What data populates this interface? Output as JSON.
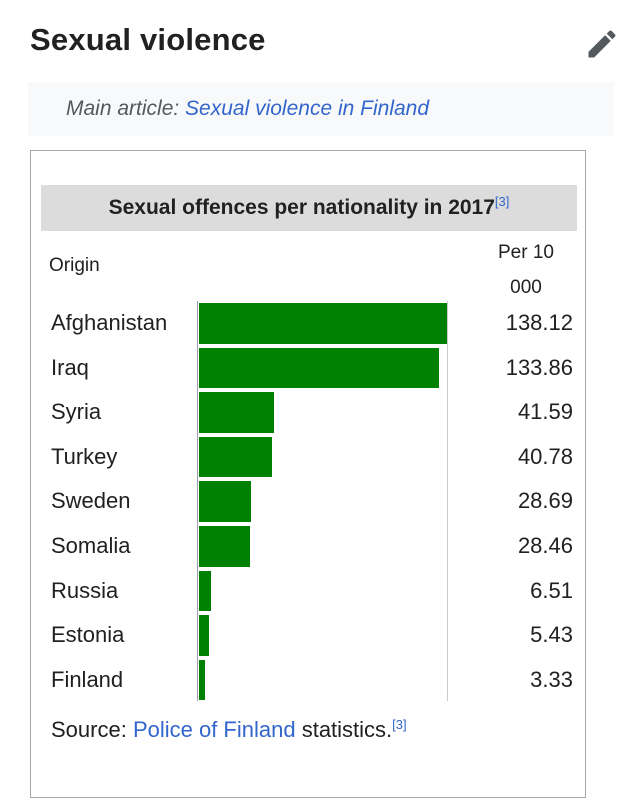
{
  "section": {
    "title": "Sexual violence",
    "edit_icon": "pencil-icon"
  },
  "hatnote": {
    "prefix": "Main article: ",
    "link": "Sexual violence in Finland"
  },
  "infobox": {
    "caption": "Sexual offences per nationality in 2017",
    "caption_ref": "[3]",
    "col_origin": "Origin",
    "col_per_line1": "Per 10",
    "col_per_line2": "000",
    "source_prefix": "Source: ",
    "source_link": "Police of Finland",
    "source_suffix": " statistics.",
    "source_ref": "[3]"
  },
  "chart_data": {
    "type": "bar",
    "title": "Sexual offences per nationality in 2017",
    "xlabel": "Origin",
    "ylabel": "Per 10 000",
    "orientation": "horizontal",
    "bar_color": "#008000",
    "categories": [
      "Afghanistan",
      "Iraq",
      "Syria",
      "Turkey",
      "Sweden",
      "Somalia",
      "Russia",
      "Estonia",
      "Finland"
    ],
    "values": [
      138.12,
      133.86,
      41.59,
      40.78,
      28.69,
      28.46,
      6.51,
      5.43,
      3.33
    ],
    "value_labels": [
      "138.12",
      "133.86",
      "41.59",
      "40.78",
      "28.69",
      "28.46",
      "6.51",
      "5.43",
      "3.33"
    ]
  }
}
